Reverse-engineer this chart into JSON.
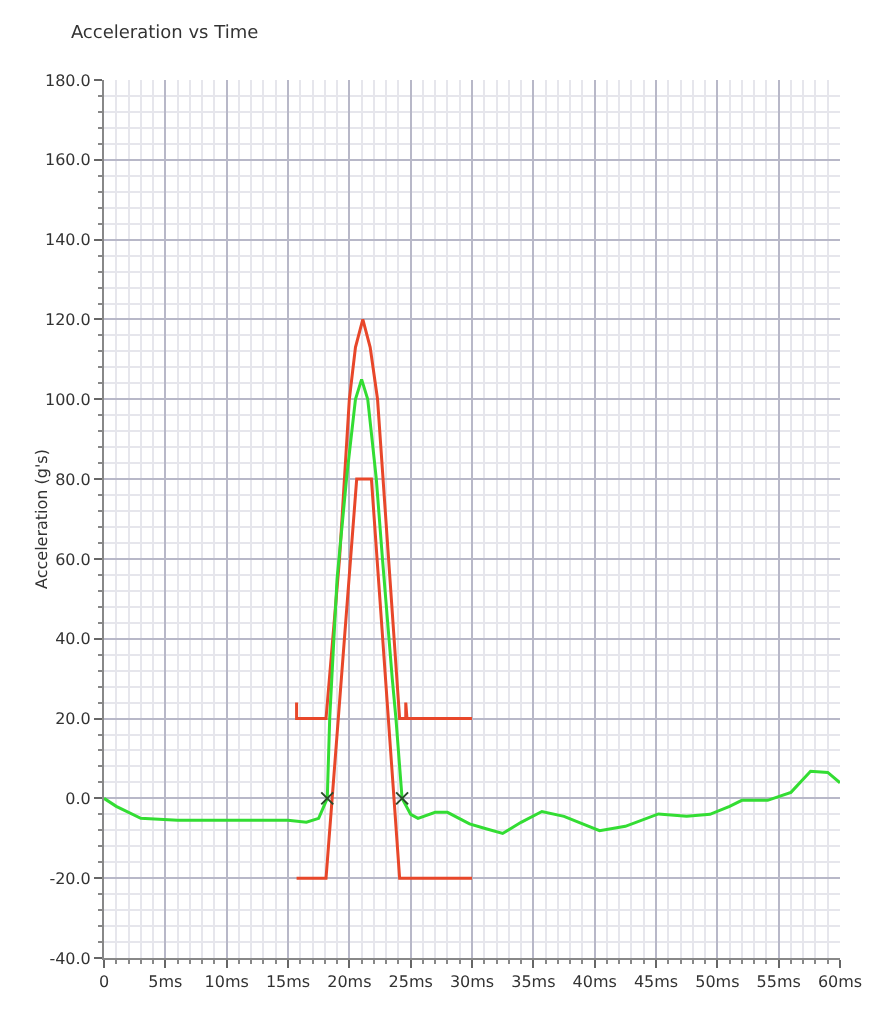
{
  "chart_data": {
    "type": "line",
    "title": "Acceleration vs Time",
    "ylabel": "Acceleration (g's)",
    "xlim": [
      0,
      60
    ],
    "ylim": [
      -40,
      180
    ],
    "xticks": [
      0,
      {
        "value": 5,
        "label": "5ms"
      },
      {
        "value": 10,
        "label": "10ms"
      },
      {
        "value": 15,
        "label": "15ms"
      },
      {
        "value": 20,
        "label": "20ms"
      },
      {
        "value": 25,
        "label": "25ms"
      },
      {
        "value": 30,
        "label": "30ms"
      },
      {
        "value": 35,
        "label": "35ms"
      },
      {
        "value": 40,
        "label": "40ms"
      },
      {
        "value": 45,
        "label": "45ms"
      },
      {
        "value": 50,
        "label": "50ms"
      },
      {
        "value": 55,
        "label": "55ms"
      },
      {
        "value": 60,
        "label": "60ms"
      }
    ],
    "yticks": [
      {
        "value": -40,
        "label": "-40.0"
      },
      {
        "value": -20,
        "label": "-20.0"
      },
      {
        "value": 0,
        "label": "0.0"
      },
      {
        "value": 20,
        "label": "20.0"
      },
      {
        "value": 40,
        "label": "40.0"
      },
      {
        "value": 60,
        "label": "60.0"
      },
      {
        "value": 80,
        "label": "80.0"
      },
      {
        "value": 100,
        "label": "100.0"
      },
      {
        "value": 120,
        "label": "120.0"
      },
      {
        "value": 140,
        "label": "140.0"
      },
      {
        "value": 160,
        "label": "160.0"
      },
      {
        "value": 180,
        "label": "180.0"
      }
    ],
    "grid": true,
    "marker": "none",
    "line_style": "solid",
    "series": [
      {
        "color": "#e8472a",
        "x": [
          15.7,
          15.7,
          15.8,
          18.1,
          19.2,
          20,
          20.5,
          21.1,
          21.7,
          22.3,
          23.2,
          24.1,
          24.6,
          24.6,
          24.7,
          30
        ],
        "values": [
          24,
          20,
          20,
          20,
          60,
          100,
          113,
          120,
          113,
          100,
          60,
          20,
          20,
          24,
          20,
          20
        ]
      },
      {
        "color": "#e8472a",
        "x": [
          15.7,
          18.1,
          20.6,
          21.8,
          24.1,
          30
        ],
        "values": [
          -20,
          -20,
          80,
          80,
          -20,
          -20
        ]
      },
      {
        "color": "#33dd33",
        "x": [
          0,
          1,
          3,
          6,
          10,
          15,
          16.5,
          17.5,
          18.2,
          18.4,
          19,
          19.8,
          20.5,
          21,
          21.5,
          22.2,
          22.7,
          23.5,
          23.8,
          24.3,
          25,
          25.6,
          27,
          28,
          29.8,
          31,
          32.5,
          34,
          35.7,
          37.5,
          40.4,
          42.5,
          45.2,
          47.5,
          49.4,
          51,
          52,
          54.1,
          56,
          57.6,
          59,
          60
        ],
        "values": [
          0,
          -2,
          -5,
          -5.5,
          -5.5,
          -5.5,
          -6,
          -5,
          0,
          20,
          55,
          81,
          100,
          105,
          100,
          80,
          60,
          30,
          20,
          0,
          -4,
          -5,
          -3.5,
          -3.5,
          -6.4,
          -7.5,
          -8.8,
          -6,
          -3.3,
          -4.5,
          -8.1,
          -7,
          -3.9,
          -4.5,
          -4,
          -2,
          -0.5,
          -0.5,
          1.5,
          6.8,
          6.5,
          3.9
        ]
      },
      {
        "type": "scatter",
        "marker": "cross",
        "color": "#2a4a2a",
        "x": [
          18.2,
          24.3
        ],
        "values": [
          0,
          0
        ]
      }
    ]
  }
}
